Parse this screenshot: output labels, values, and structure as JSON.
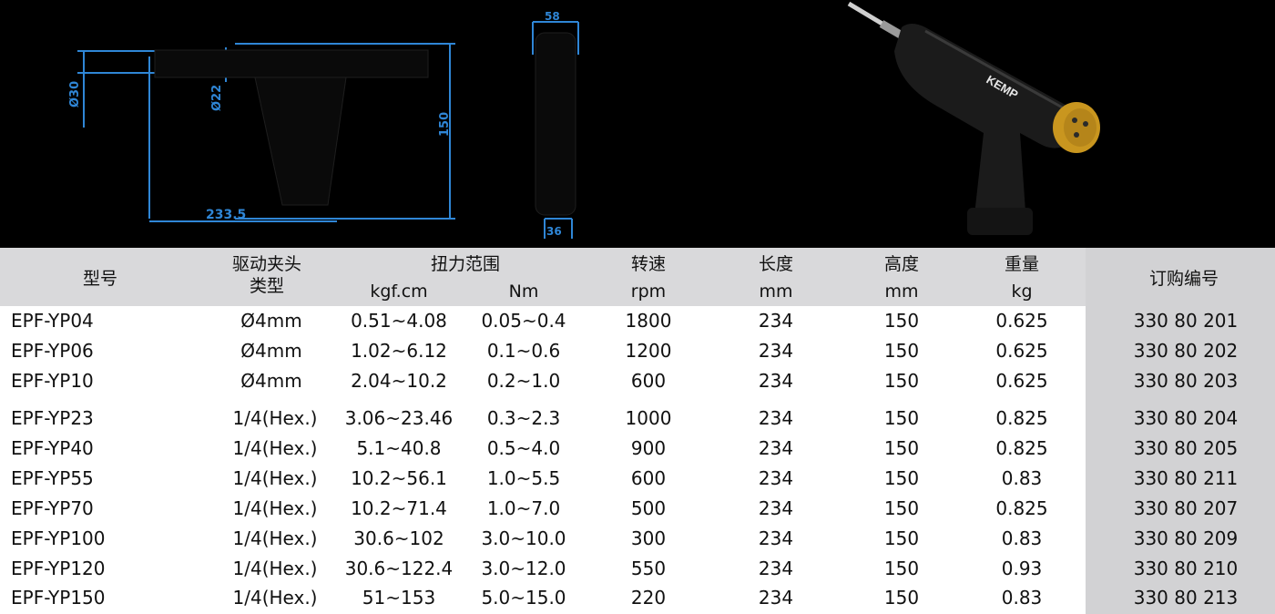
{
  "drawing": {
    "dims": {
      "d1": "Ø30",
      "d2": "Ø22",
      "height": "150",
      "length": "233.5",
      "width_top": "58",
      "width_bottom": "36"
    },
    "colors": {
      "dim_line": "#2f86d6",
      "part": "#000000"
    }
  },
  "product": {
    "brand": "KEMP",
    "colors": {
      "body": "#1b1b1b",
      "cap": "#c9961f"
    }
  },
  "table": {
    "headers": {
      "model": "型号",
      "chuck_line1": "驱动夹头",
      "chuck_line2": "类型",
      "torque": "扭力范围",
      "torque_kgf": "kgf.cm",
      "torque_nm": "Nm",
      "speed": "转速",
      "speed_unit": "rpm",
      "length": "长度",
      "length_unit": "mm",
      "height": "高度",
      "height_unit": "mm",
      "weight": "重量",
      "weight_unit": "kg",
      "order": "订购编号"
    },
    "rows": [
      {
        "model": "EPF-YP04",
        "chuck": "Ø4mm",
        "kgf": "0.51~4.08",
        "nm": "0.05~0.4",
        "rpm": "1800",
        "length": "234",
        "height": "150",
        "weight": "0.625",
        "order": "330 80 201"
      },
      {
        "model": "EPF-YP06",
        "chuck": "Ø4mm",
        "kgf": "1.02~6.12",
        "nm": "0.1~0.6",
        "rpm": "1200",
        "length": "234",
        "height": "150",
        "weight": "0.625",
        "order": "330 80 202"
      },
      {
        "model": "EPF-YP10",
        "chuck": "Ø4mm",
        "kgf": "2.04~10.2",
        "nm": "0.2~1.0",
        "rpm": "600",
        "length": "234",
        "height": "150",
        "weight": "0.625",
        "order": "330 80 203"
      },
      {
        "model": "EPF-YP23",
        "chuck": "1/4(Hex.)",
        "kgf": "3.06~23.46",
        "nm": "0.3~2.3",
        "rpm": "1000",
        "length": "234",
        "height": "150",
        "weight": "0.825",
        "order": "330 80 204"
      },
      {
        "model": "EPF-YP40",
        "chuck": "1/4(Hex.)",
        "kgf": "5.1~40.8",
        "nm": "0.5~4.0",
        "rpm": "900",
        "length": "234",
        "height": "150",
        "weight": "0.825",
        "order": "330 80 205"
      },
      {
        "model": "EPF-YP55",
        "chuck": "1/4(Hex.)",
        "kgf": "10.2~56.1",
        "nm": "1.0~5.5",
        "rpm": "600",
        "length": "234",
        "height": "150",
        "weight": "0.83",
        "order": "330 80 211"
      },
      {
        "model": "EPF-YP70",
        "chuck": "1/4(Hex.)",
        "kgf": "10.2~71.4",
        "nm": "1.0~7.0",
        "rpm": "500",
        "length": "234",
        "height": "150",
        "weight": "0.825",
        "order": "330 80 207"
      },
      {
        "model": "EPF-YP100",
        "chuck": "1/4(Hex.)",
        "kgf": "30.6~102",
        "nm": "3.0~10.0",
        "rpm": "300",
        "length": "234",
        "height": "150",
        "weight": "0.83",
        "order": "330 80 209"
      },
      {
        "model": "EPF-YP120",
        "chuck": "1/4(Hex.)",
        "kgf": "30.6~122.4",
        "nm": "3.0~12.0",
        "rpm": "550",
        "length": "234",
        "height": "150",
        "weight": "0.93",
        "order": "330 80 210"
      },
      {
        "model": "EPF-YP150",
        "chuck": "1/4(Hex.)",
        "kgf": "51~153",
        "nm": "5.0~15.0",
        "rpm": "220",
        "length": "234",
        "height": "150",
        "weight": "0.83",
        "order": "330 80 213"
      }
    ]
  }
}
